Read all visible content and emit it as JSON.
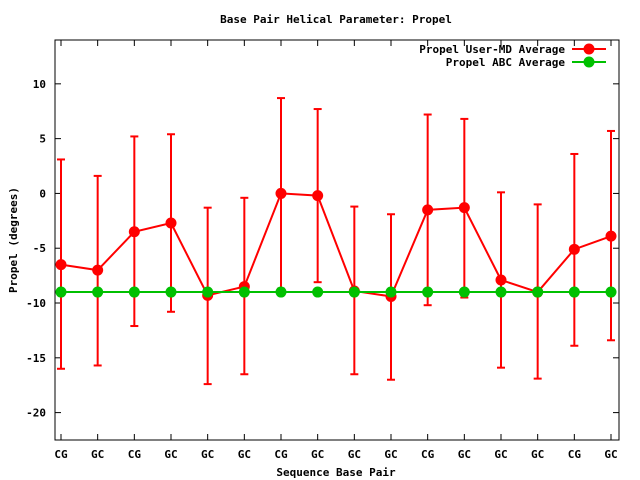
{
  "chart_data": {
    "type": "line",
    "title": "Base Pair Helical Parameter: Propel",
    "xlabel": "Sequence Base Pair",
    "ylabel": "Propel (degrees)",
    "categories": [
      "CG",
      "GC",
      "CG",
      "GC",
      "GC",
      "GC",
      "CG",
      "GC",
      "GC",
      "GC",
      "CG",
      "GC",
      "GC",
      "GC",
      "CG",
      "GC"
    ],
    "ylim": [
      -22.5,
      14
    ],
    "yticks": [
      -20,
      -15,
      -10,
      -5,
      0,
      5,
      10
    ],
    "legend_position": "top-right",
    "grid": false,
    "series": [
      {
        "name": "Propel User-MD Average",
        "color": "#ff0000",
        "values": [
          -6.5,
          -7.0,
          -3.5,
          -2.7,
          -9.3,
          -8.5,
          0.0,
          -0.2,
          -8.9,
          -9.4,
          -1.5,
          -1.3,
          -7.9,
          -9.0,
          -5.1,
          -3.9
        ],
        "error_low": [
          -16.0,
          -15.7,
          -12.1,
          -10.8,
          -17.4,
          -16.5,
          -8.7,
          -8.1,
          -16.5,
          -17.0,
          -10.2,
          -9.5,
          -15.9,
          -16.9,
          -13.9,
          -13.4
        ],
        "error_high": [
          3.1,
          1.6,
          5.2,
          5.4,
          -1.3,
          -0.4,
          8.7,
          7.7,
          -1.2,
          -1.9,
          7.2,
          6.8,
          0.1,
          -1.0,
          3.6,
          5.7
        ]
      },
      {
        "name": "Propel ABC Average",
        "color": "#00c000",
        "values": [
          -9.0,
          -9.0,
          -9.0,
          -9.0,
          -9.0,
          -9.0,
          -9.0,
          -9.0,
          -9.0,
          -9.0,
          -9.0,
          -9.0,
          -9.0,
          -9.0,
          -9.0,
          -9.0
        ]
      }
    ]
  }
}
